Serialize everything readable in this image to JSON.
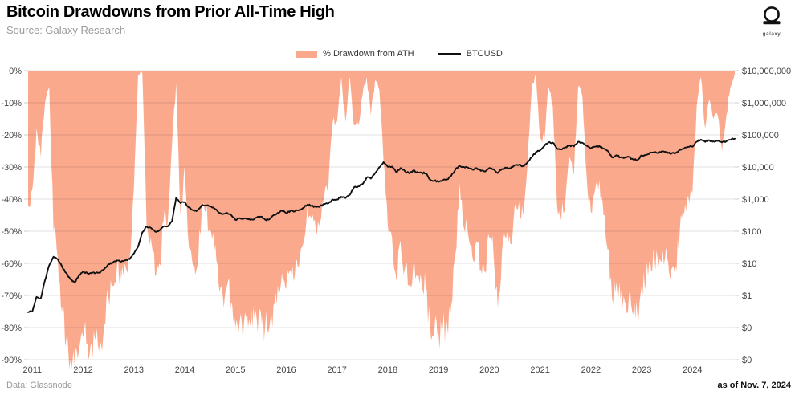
{
  "header": {
    "title": "Bitcoin Drawdowns from Prior All-Time High",
    "source": "Source: Galaxy Research"
  },
  "logo": {
    "label": "galaxy"
  },
  "legend": {
    "drawdown_label": "% Drawdown from ATH",
    "btcusd_label": "BTCUSD"
  },
  "footer": {
    "left": "Data: Glassnode",
    "right": "as of Nov. 7, 2024"
  },
  "colors": {
    "area": "#FBA98C",
    "line": "#111111",
    "grid": "#000000",
    "grid_opacity": 0.12,
    "axis_text": "#444444",
    "tick": "#cccccc"
  },
  "chart_data": {
    "type": "area+line",
    "title": "Bitcoin Drawdowns from Prior All-Time High",
    "time_base": {
      "t0": 2010.958,
      "step_years": 0.083333,
      "note": "monthly points, Dec 2010 through Nov 7 2024"
    },
    "x_ticks": [
      2011,
      2012,
      2013,
      2014,
      2015,
      2016,
      2017,
      2018,
      2019,
      2020,
      2021,
      2022,
      2023,
      2024
    ],
    "left_axis": {
      "title": "",
      "ticks": [
        "0%",
        "-10%",
        "-20%",
        "-30%",
        "-40%",
        "-50%",
        "-60%",
        "-70%",
        "-80%",
        "-90%"
      ],
      "range": [
        0,
        -90
      ]
    },
    "right_axis": {
      "title": "",
      "scale": "log",
      "ticks": [
        "$10,000,000",
        "$1,000,000",
        "$100,000",
        "$10,000",
        "$1,000",
        "$100",
        "$10",
        "$1",
        "$0",
        "$0"
      ],
      "range_log10_usd": [
        7,
        -2
      ]
    },
    "legend_position": "top-center",
    "grid": true,
    "series": [
      {
        "name": "% Drawdown from ATH",
        "type": "area",
        "axis": "left",
        "unit": "%",
        "values": [
          -42,
          -37,
          -18,
          -27,
          -10,
          -5,
          -50,
          -58,
          -75,
          -84,
          -90,
          -92,
          -87,
          -83,
          -85,
          -85,
          -84,
          -84,
          -79,
          -71,
          -67,
          -61,
          -65,
          -61,
          -58,
          -37,
          -1,
          -1,
          -48,
          -52,
          -64,
          -60,
          -47,
          -47,
          -23,
          -4,
          -45,
          -30,
          -55,
          -61,
          -61,
          -45,
          -44,
          -49,
          -56,
          -66,
          -70,
          -67,
          -72,
          -80,
          -78,
          -79,
          -80,
          -80,
          -77,
          -75,
          -80,
          -80,
          -73,
          -67,
          -63,
          -68,
          -62,
          -64,
          -61,
          -54,
          -42,
          -46,
          -50,
          -47,
          -39,
          -35,
          -16,
          -16,
          -2,
          -16,
          -2,
          -17,
          -17,
          -8,
          -2,
          -14,
          -3,
          -6,
          -28,
          -48,
          -52,
          -65,
          -53,
          -62,
          -67,
          -61,
          -64,
          -66,
          -68,
          -80,
          -81,
          -82,
          -80,
          -79,
          -73,
          -57,
          -35,
          -49,
          -51,
          -58,
          -53,
          -62,
          -63,
          -52,
          -57,
          -74,
          -56,
          -52,
          -54,
          -42,
          -41,
          -45,
          -30,
          -6,
          -1,
          -21,
          -22,
          -5,
          -11,
          -42,
          -46,
          -40,
          -27,
          -32,
          -5,
          -8,
          -33,
          -44,
          -37,
          -34,
          -45,
          -56,
          -71,
          -66,
          -71,
          -72,
          -70,
          -76,
          -76,
          -67,
          -66,
          -59,
          -58,
          -61,
          -56,
          -58,
          -62,
          -61,
          -50,
          -45,
          -39,
          -38,
          -11,
          -2,
          -18,
          -9,
          -15,
          -14,
          -25,
          -14,
          -5,
          -1
        ]
      },
      {
        "name": "BTCUSD",
        "type": "line",
        "axis": "right",
        "unit": "USD",
        "values": [
          0.3,
          0.32,
          0.9,
          0.8,
          3.0,
          8.7,
          16,
          13.5,
          8,
          5,
          3.2,
          2.5,
          4.2,
          5.5,
          4.9,
          4.9,
          5.0,
          5.1,
          6.7,
          9.4,
          10.5,
          12.4,
          11.2,
          12.5,
          13.5,
          20,
          33,
          93,
          139,
          128,
          97,
          106,
          141,
          141,
          204,
          1100,
          755,
          805,
          550,
          450,
          445,
          630,
          640,
          590,
          510,
          390,
          340,
          375,
          320,
          225,
          255,
          245,
          235,
          230,
          265,
          285,
          230,
          235,
          315,
          375,
          430,
          370,
          435,
          415,
          450,
          530,
          670,
          625,
          575,
          610,
          700,
          745,
          965,
          970,
          1190,
          1080,
          1350,
          2300,
          2480,
          2875,
          4700,
          4340,
          6450,
          9900,
          14100,
          10200,
          10300,
          6930,
          9240,
          7500,
          6400,
          7750,
          7010,
          6600,
          6300,
          4020,
          3740,
          3460,
          3850,
          4100,
          5320,
          8550,
          10800,
          10000,
          9600,
          8300,
          9150,
          7550,
          7200,
          9350,
          8550,
          6440,
          8650,
          9450,
          9140,
          11350,
          11650,
          10780,
          13800,
          19700,
          29000,
          33100,
          45200,
          58800,
          57700,
          37300,
          35000,
          41500,
          47100,
          43800,
          61300,
          57000,
          46200,
          38500,
          43200,
          45500,
          37700,
          31800,
          19900,
          23300,
          20050,
          19400,
          20500,
          17150,
          16550,
          23100,
          23150,
          28500,
          29250,
          27200,
          30480,
          29230,
          25930,
          26970,
          34650,
          37700,
          42250,
          42580,
          61200,
          71300,
          60600,
          67500,
          62700,
          64600,
          58970,
          63300,
          70200,
          75900
        ]
      }
    ]
  }
}
